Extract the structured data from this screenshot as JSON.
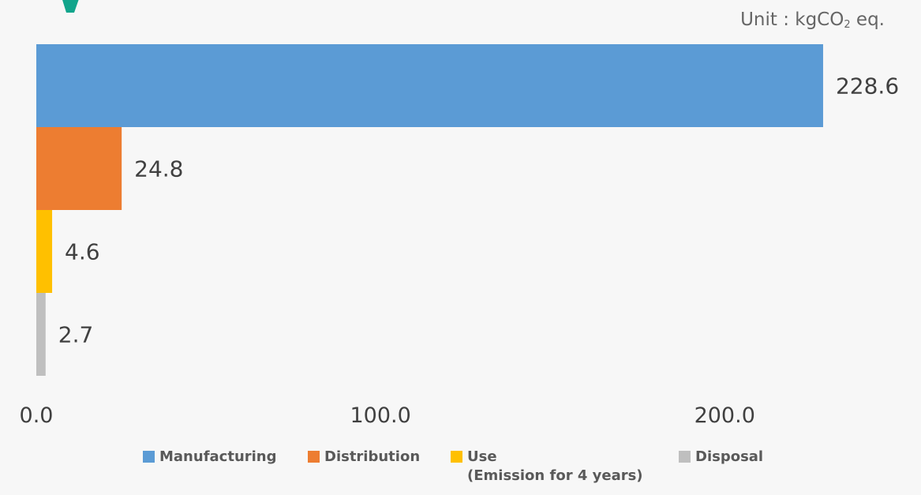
{
  "unit": {
    "prefix": "Unit : kgCO",
    "subscript": "2",
    "suffix": " eq."
  },
  "title_color": "#12a58c",
  "chart_data": {
    "type": "bar",
    "orientation": "horizontal",
    "categories": [
      "Manufacturing",
      "Distribution",
      "Use (Emission for 4 years)",
      "Disposal"
    ],
    "values": [
      228.6,
      24.8,
      4.6,
      2.7
    ],
    "value_labels": [
      "228.6",
      "24.8",
      "4.6",
      "2.7"
    ],
    "colors": [
      "#5b9bd5",
      "#ed7d31",
      "#ffc000",
      "#bfbfbf"
    ],
    "xlim": [
      0,
      250
    ],
    "xticks": [
      {
        "value": 0,
        "label": "0.0"
      },
      {
        "value": 100,
        "label": "100.0"
      },
      {
        "value": 200,
        "label": "200.0"
      }
    ],
    "grid": false,
    "legend_position": "bottom"
  },
  "legend": [
    {
      "label": "Manufacturing",
      "sub": "",
      "color": "#5b9bd5"
    },
    {
      "label": "Distribution",
      "sub": "",
      "color": "#ed7d31"
    },
    {
      "label": "Use",
      "sub": "(Emission for 4 years)",
      "color": "#ffc000"
    },
    {
      "label": "Disposal",
      "sub": "",
      "color": "#bfbfbf"
    }
  ]
}
